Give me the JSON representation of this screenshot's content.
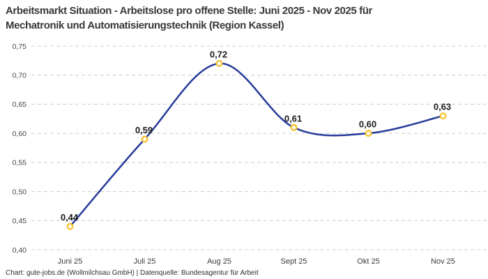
{
  "header": {
    "title_lines": [
      "Arbeitsmarkt Situation - Arbeitslose pro offene Stelle: Juni 2025 - Nov 2025 für",
      "Mechatronik und Automatisierungstechnik (Region Kassel)"
    ]
  },
  "footer": {
    "credit": "Chart: gute-jobs.de (Wollmilchsau GmbH) | Datenquelle: Bundesagentur für Arbeit"
  },
  "chart_data": {
    "type": "line",
    "title": "Arbeitsmarkt Situation - Arbeitslose pro offene Stelle: Juni 2025 - Nov 2025 für Mechatronik und Automatisierungstechnik (Region Kassel)",
    "categories": [
      "Juni 25",
      "Juli 25",
      "Aug 25",
      "Sept 25",
      "Okt 25",
      "Nov 25"
    ],
    "values": [
      0.44,
      0.59,
      0.72,
      0.61,
      0.6,
      0.63
    ],
    "point_labels": [
      "0,44",
      "0,59",
      "0,72",
      "0,61",
      "0,60",
      "0,63"
    ],
    "xlabel": "",
    "ylabel": "",
    "ylim": [
      0.4,
      0.75
    ],
    "y_ticks": [
      {
        "value": 0.4,
        "label": "0,40"
      },
      {
        "value": 0.45,
        "label": "0,45"
      },
      {
        "value": 0.5,
        "label": "0,50"
      },
      {
        "value": 0.55,
        "label": "0,55"
      },
      {
        "value": 0.6,
        "label": "0,60"
      },
      {
        "value": 0.65,
        "label": "0,65"
      },
      {
        "value": 0.7,
        "label": "0,70"
      },
      {
        "value": 0.75,
        "label": "0,75"
      }
    ],
    "grid": "horizontal-dashed",
    "legend": "none",
    "curve": "smooth",
    "colors": {
      "line": "#253a9b",
      "marker_ring": "#f7c331",
      "marker_fill": "#ffffff",
      "gridline": "#cccccc"
    }
  }
}
